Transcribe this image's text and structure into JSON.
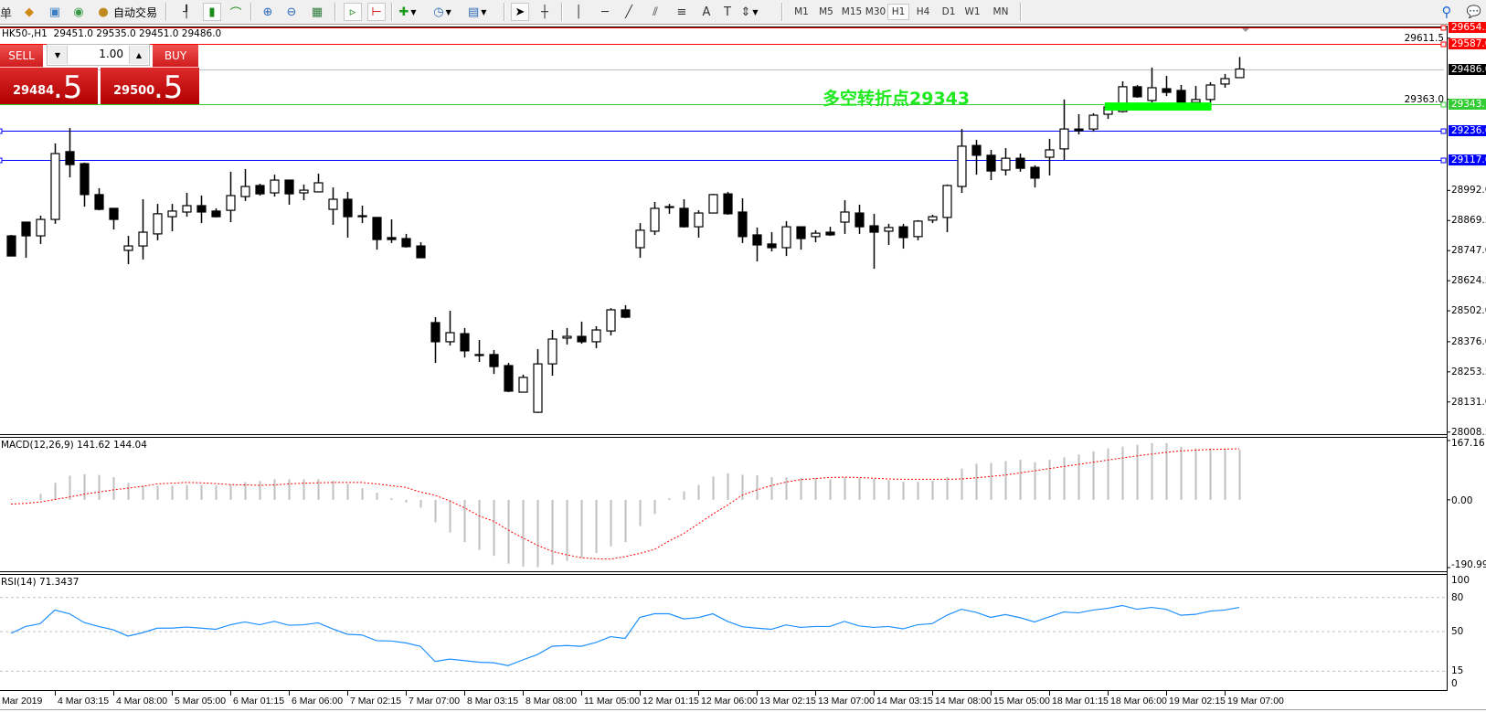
{
  "toolbar": {
    "cut_text": "单",
    "auto_trade_label": "自动交易",
    "timeframes": [
      "M1",
      "M5",
      "M15",
      "M30",
      "H1",
      "H4",
      "D1",
      "W1",
      "MN"
    ],
    "active_timeframe": "H1",
    "icons": [
      "market-watch-icon",
      "navigator-icon",
      "signals-icon",
      "auto-trading-icon",
      "bar-chart-icon",
      "candlestick-icon",
      "line-chart-icon",
      "zoom-in-icon",
      "zoom-out-icon",
      "tile-windows-icon",
      "auto-scroll-icon",
      "chart-shift-icon",
      "indicators-icon",
      "periods-icon",
      "templates-icon",
      "cursor-icon",
      "crosshair-icon",
      "vertical-line-icon",
      "horizontal-line-icon",
      "trendline-icon",
      "equidistant-channel-icon",
      "fibonacci-icon",
      "text-icon",
      "text-label-icon",
      "arrows-icon",
      "search-icon",
      "chat-icon"
    ]
  },
  "chart": {
    "info_line": "HK50-,H1  29451.0 29535.0 29451.0 29486.0",
    "annotation": {
      "text": "多空转折点29343",
      "bar": 55.5,
      "price": 29339,
      "color": "#1ee81e"
    }
  },
  "trade_panel": {
    "sell_label": "SELL",
    "buy_label": "BUY",
    "lot": "1.00",
    "bid_main": "29484",
    "bid_frac": ".5",
    "ask_main": "29500",
    "ask_frac": ".5"
  },
  "chart_data": {
    "type": "candlestick",
    "symbol": "HK50-",
    "timeframe": "H1",
    "ohlc_fields": [
      "open",
      "high",
      "low",
      "close"
    ],
    "candles": [
      [
        28807,
        28811,
        28725,
        28725
      ],
      [
        28863,
        28863,
        28718,
        28807
      ],
      [
        28807,
        28889,
        28774,
        28874
      ],
      [
        28874,
        29183,
        28856,
        29142
      ],
      [
        29150,
        29246,
        29045,
        29097
      ],
      [
        29101,
        29105,
        28926,
        28975
      ],
      [
        28975,
        29001,
        28911,
        28915
      ],
      [
        28919,
        28919,
        28833,
        28874
      ],
      [
        28748,
        28807,
        28692,
        28766
      ],
      [
        28766,
        28956,
        28711,
        28822
      ],
      [
        28815,
        28937,
        28789,
        28897
      ],
      [
        28885,
        28937,
        28826,
        28908
      ],
      [
        28904,
        28982,
        28885,
        28930
      ],
      [
        28930,
        28971,
        28859,
        28904
      ],
      [
        28908,
        28919,
        28882,
        28885
      ],
      [
        28911,
        29068,
        28863,
        28971
      ],
      [
        28967,
        29079,
        28949,
        29008
      ],
      [
        29012,
        29019,
        28971,
        28978
      ],
      [
        28982,
        29056,
        28967,
        29034
      ],
      [
        29034,
        29034,
        28934,
        28978
      ],
      [
        28982,
        29016,
        28952,
        28993
      ],
      [
        28986,
        29060,
        28986,
        29023
      ],
      [
        28915,
        29004,
        28852,
        28956
      ],
      [
        28956,
        28986,
        28800,
        28885
      ],
      [
        28889,
        28930,
        28859,
        28885
      ],
      [
        28882,
        28882,
        28751,
        28792
      ],
      [
        28800,
        28874,
        28778,
        28792
      ],
      [
        28796,
        28815,
        28759,
        28763
      ],
      [
        28766,
        28781,
        28718,
        28718
      ],
      [
        28454,
        28476,
        28290,
        28376
      ],
      [
        28376,
        28502,
        28361,
        28413
      ],
      [
        28409,
        28432,
        28312,
        28339
      ],
      [
        28324,
        28383,
        28294,
        28320
      ],
      [
        28324,
        28342,
        28245,
        28275
      ],
      [
        28279,
        28290,
        28171,
        28175
      ],
      [
        28171,
        28242,
        28171,
        28231
      ],
      [
        28089,
        28346,
        28086,
        28286
      ],
      [
        28286,
        28424,
        28238,
        28387
      ],
      [
        28391,
        28432,
        28365,
        28398
      ],
      [
        28398,
        28458,
        28368,
        28376
      ],
      [
        28376,
        28439,
        28350,
        28424
      ],
      [
        28420,
        28513,
        28402,
        28506
      ],
      [
        28506,
        28525,
        28472,
        28476
      ],
      [
        28759,
        28859,
        28718,
        28830
      ],
      [
        28826,
        28945,
        28811,
        28919
      ],
      [
        28923,
        28937,
        28897,
        28926
      ],
      [
        28919,
        28956,
        28841,
        28844
      ],
      [
        28844,
        28911,
        28800,
        28900
      ],
      [
        28900,
        28978,
        28900,
        28975
      ],
      [
        28978,
        28986,
        28893,
        28897
      ],
      [
        28904,
        28960,
        28778,
        28804
      ],
      [
        28811,
        28841,
        28703,
        28770
      ],
      [
        28774,
        28822,
        28744,
        28759
      ],
      [
        28759,
        28867,
        28725,
        28844
      ],
      [
        28844,
        28844,
        28751,
        28796
      ],
      [
        28804,
        28830,
        28781,
        28818
      ],
      [
        28822,
        28844,
        28807,
        28811
      ],
      [
        28863,
        28952,
        28815,
        28904
      ],
      [
        28900,
        28934,
        28815,
        28844
      ],
      [
        28848,
        28897,
        28673,
        28822
      ],
      [
        28826,
        28856,
        28770,
        28841
      ],
      [
        28844,
        28856,
        28755,
        28800
      ],
      [
        28804,
        28871,
        28789,
        28867
      ],
      [
        28871,
        28893,
        28859,
        28885
      ],
      [
        28882,
        29016,
        28822,
        29012
      ],
      [
        29008,
        29242,
        28982,
        29172
      ],
      [
        29175,
        29198,
        29056,
        29135
      ],
      [
        29135,
        29157,
        29034,
        29071
      ],
      [
        29075,
        29164,
        29053,
        29123
      ],
      [
        29123,
        29142,
        29068,
        29082
      ],
      [
        29086,
        29094,
        29004,
        29042
      ],
      [
        29127,
        29202,
        29053,
        29157
      ],
      [
        29161,
        29362,
        29116,
        29242
      ],
      [
        29242,
        29302,
        29220,
        29235
      ],
      [
        29242,
        29306,
        29231,
        29298
      ],
      [
        29302,
        29350,
        29283,
        29332
      ],
      [
        29313,
        29436,
        29309,
        29414
      ],
      [
        29414,
        29421,
        29369,
        29373
      ],
      [
        29358,
        29492,
        29350,
        29410
      ],
      [
        29406,
        29458,
        29376,
        29391
      ],
      [
        29399,
        29421,
        29339,
        29350
      ],
      [
        29350,
        29417,
        29339,
        29362
      ],
      [
        29362,
        29432,
        29350,
        29421
      ],
      [
        29425,
        29466,
        29410,
        29447
      ],
      [
        29451,
        29535,
        29451,
        29486
      ]
    ],
    "y_tick_labels": [
      "29611.5",
      "29363.0",
      "28992.0",
      "28869.5",
      "28747.0",
      "28624.5",
      "28502.0",
      "28376.0",
      "28253.5",
      "28131.0",
      "28008.5"
    ],
    "x_labels": [
      {
        "text": "Mar 2019",
        "bar": -1
      },
      {
        "text": "4 Mar 03:15",
        "bar": 3
      },
      {
        "text": "4 Mar 08:00",
        "bar": 7
      },
      {
        "text": "5 Mar 05:00",
        "bar": 11
      },
      {
        "text": "6 Mar 01:15",
        "bar": 15
      },
      {
        "text": "6 Mar 06:00",
        "bar": 19
      },
      {
        "text": "7 Mar 02:15",
        "bar": 23
      },
      {
        "text": "7 Mar 07:00",
        "bar": 27
      },
      {
        "text": "8 Mar 03:15",
        "bar": 31
      },
      {
        "text": "8 Mar 08:00",
        "bar": 35
      },
      {
        "text": "11 Mar 05:00",
        "bar": 39
      },
      {
        "text": "12 Mar 01:15",
        "bar": 43
      },
      {
        "text": "12 Mar 06:00",
        "bar": 47
      },
      {
        "text": "13 Mar 02:15",
        "bar": 51
      },
      {
        "text": "13 Mar 07:00",
        "bar": 55
      },
      {
        "text": "14 Mar 03:15",
        "bar": 59
      },
      {
        "text": "14 Mar 08:00",
        "bar": 63
      },
      {
        "text": "15 Mar 05:00",
        "bar": 67
      },
      {
        "text": "18 Mar 01:15",
        "bar": 71
      },
      {
        "text": "18 Mar 06:00",
        "bar": 75
      },
      {
        "text": "19 Mar 02:15",
        "bar": 79
      },
      {
        "text": "19 Mar 07:00",
        "bar": 83
      }
    ],
    "horizontal_lines": [
      {
        "label": "29654.3",
        "price": 29654.3,
        "color": "#ff0000"
      },
      {
        "label": "29587.0",
        "price": 29587.0,
        "color": "#ff0000"
      },
      {
        "label": "29486.0",
        "price": 29486.0,
        "color": "#c0c0c0",
        "tag_color": "#000000",
        "kind": "bid"
      },
      {
        "label": "29343.1",
        "price": 29343.1,
        "color": "#32cd32"
      },
      {
        "label": "29236.6",
        "price": 29236.6,
        "color": "#0000ff"
      },
      {
        "label": "29117.6",
        "price": 29117.6,
        "color": "#0000ff"
      }
    ],
    "rectangle": {
      "from_bar": 74.8,
      "to_bar": 82.1,
      "price_top": 29350,
      "price_bottom": 29317,
      "color": "#00ff00"
    },
    "colors": {
      "bull_body": "#ffffff",
      "bear_body": "#000000",
      "outline": "#000000"
    }
  },
  "macd": {
    "label": "MACD(12,26,9) 141.62 144.04",
    "axis_labels": [
      "167.16",
      "0.00",
      "-190.99"
    ],
    "range": [
      -190.99,
      167.16
    ],
    "histogram_color": "#c0c0c0",
    "signal_color": "#ff0000",
    "histogram": [
      3,
      2,
      17,
      48,
      68,
      72,
      70,
      64,
      48,
      40,
      40,
      40,
      42,
      42,
      40,
      44,
      50,
      53,
      58,
      58,
      58,
      58,
      54,
      45,
      33,
      20,
      5,
      -8,
      -22,
      -63,
      -92,
      -119,
      -141,
      -158,
      -180,
      -188,
      -190,
      -183,
      -172,
      -163,
      -150,
      -131,
      -119,
      -74,
      -40,
      5,
      24,
      42,
      66,
      75,
      71,
      69,
      64,
      64,
      62,
      62,
      58,
      64,
      62,
      60,
      56,
      51,
      51,
      54,
      64,
      88,
      102,
      104,
      109,
      113,
      106,
      113,
      120,
      128,
      137,
      145,
      150,
      155,
      160,
      160,
      150,
      145,
      145,
      145,
      141.62
    ],
    "signal": [
      -12,
      -10,
      -6,
      1,
      8,
      16,
      22,
      28,
      33,
      38,
      45,
      47,
      49,
      48,
      46,
      43,
      42,
      41,
      42,
      45,
      47,
      48,
      49,
      49,
      49,
      45,
      40,
      35,
      22,
      13,
      -3,
      -22,
      -45,
      -60,
      -85,
      -107,
      -128,
      -145,
      -155,
      -163,
      -166,
      -167,
      -160,
      -151,
      -140,
      -116,
      -95,
      -68,
      -40,
      -15,
      13,
      28,
      40,
      50,
      57,
      60,
      63,
      64,
      63,
      61,
      59,
      58,
      58,
      58,
      58,
      59,
      62,
      66,
      70,
      76,
      82,
      88,
      94,
      100,
      106,
      112,
      118,
      124,
      129,
      134,
      138,
      140,
      142,
      143,
      144.04
    ]
  },
  "rsi": {
    "label": "RSI(14) 71.3437",
    "axis_labels": [
      "100",
      "80",
      "50",
      "15",
      "0"
    ],
    "levels": [
      80,
      50,
      15
    ],
    "color": "#1e90ff",
    "values": [
      48.4,
      54.5,
      57,
      69,
      65.7,
      58,
      54.5,
      51.6,
      46,
      49,
      53,
      53,
      54,
      53,
      52,
      56,
      58.5,
      56,
      59,
      55.6,
      56,
      57.7,
      52.4,
      47.6,
      47,
      42,
      41.7,
      40,
      37,
      23.6,
      25.7,
      24.4,
      23,
      22.5,
      20,
      25,
      29.7,
      37,
      37.7,
      37,
      40.4,
      45.5,
      44,
      62.5,
      65.7,
      65.7,
      61.2,
      62.3,
      65.7,
      59,
      54.3,
      53,
      52,
      55.9,
      53.7,
      54.5,
      54.5,
      59,
      55,
      53.7,
      54.5,
      52.4,
      56,
      57,
      64.4,
      69.7,
      67,
      62.5,
      65,
      62.3,
      58.5,
      63,
      67.3,
      66.5,
      69,
      70.5,
      73,
      69.7,
      71.3,
      69.7,
      64.4,
      65.2,
      68,
      69,
      71.3437
    ]
  }
}
